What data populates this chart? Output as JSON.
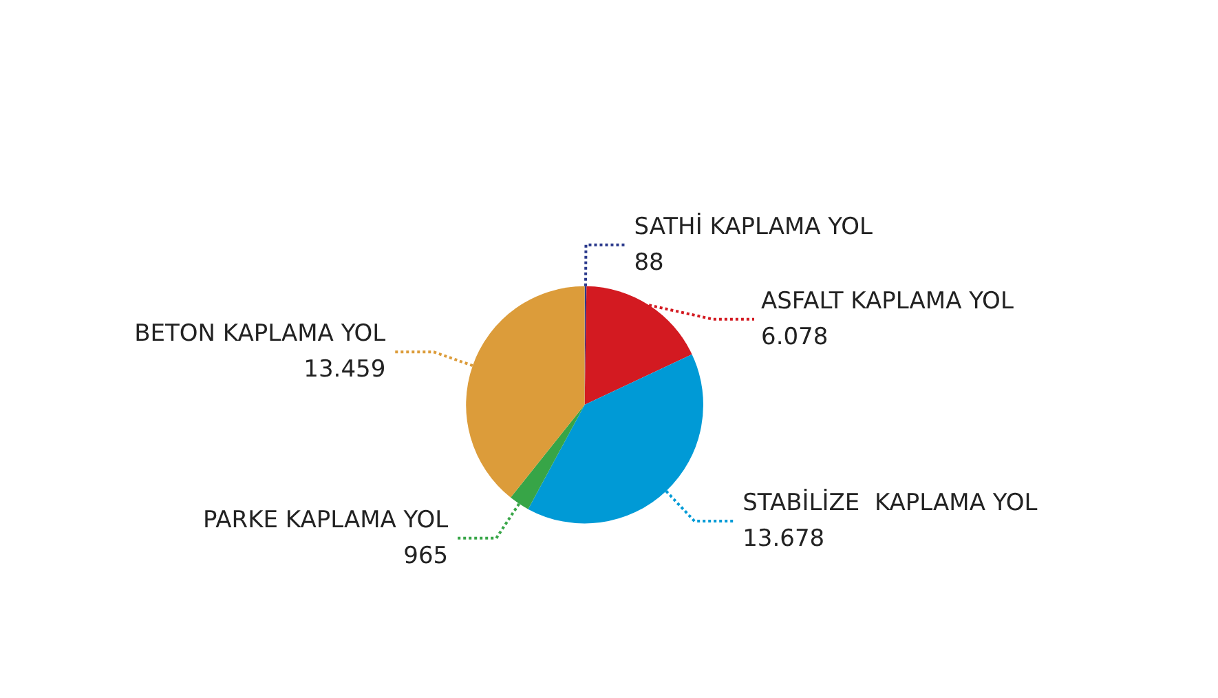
{
  "chart_data": {
    "type": "pie",
    "categories": [
      "SATHİ KAPLAMA YOL",
      "ASFALT KAPLAMA YOL",
      "STABİLİZE  KAPLAMA YOL",
      "PARKE KAPLAMA YOL",
      "BETON KAPLAMA YOL"
    ],
    "values": [
      88,
      6078,
      13678,
      965,
      13459
    ],
    "value_labels": [
      "88",
      "6.078",
      "13.678",
      "965",
      "13.459"
    ],
    "colors": [
      "#2b3a8c",
      "#d31a21",
      "#009ad6",
      "#37a547",
      "#dc9c3a"
    ],
    "legend": false
  }
}
